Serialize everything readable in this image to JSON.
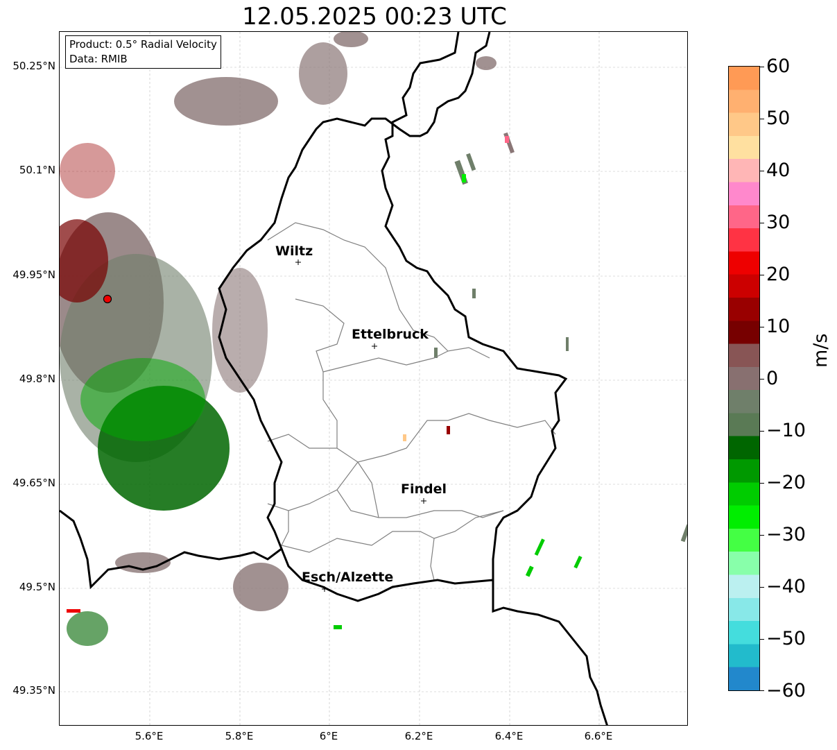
{
  "title": "12.05.2025 00:23 UTC",
  "info_box": {
    "product": "Product: 0.5° Radial Velocity",
    "data": "Data: RMIB"
  },
  "lat_ticks": [
    "50.25°N",
    "50.1°N",
    "49.95°N",
    "49.8°N",
    "49.65°N",
    "49.5°N",
    "49.35°N"
  ],
  "lon_ticks": [
    "5.6°E",
    "5.8°E",
    "6°E",
    "6.2°E",
    "6.4°E",
    "6.6°E"
  ],
  "cities": [
    {
      "name": "Wiltz"
    },
    {
      "name": "Ettelbruck"
    },
    {
      "name": "Findel"
    },
    {
      "name": "Esch/Alzette"
    }
  ],
  "colorbar": {
    "label": "m/s",
    "ticks": [
      "60",
      "50",
      "40",
      "30",
      "20",
      "10",
      "0",
      "−10",
      "−20",
      "−30",
      "−40",
      "−50",
      "−60"
    ],
    "range": [
      -60,
      60
    ],
    "colors_top_to_bottom": [
      "#ff9a55",
      "#ffb070",
      "#ffc888",
      "#ffe0a0",
      "#ffb6b6",
      "#ff88cc",
      "#ff6688",
      "#ff3344",
      "#ee0000",
      "#cc0000",
      "#990000",
      "#770000",
      "#885555",
      "#887070",
      "#6f7f6a",
      "#5a7a55",
      "#006600",
      "#009900",
      "#00cc00",
      "#00ee00",
      "#44ff44",
      "#88ffaa",
      "#bbf0f0",
      "#88e8e8",
      "#44dddd",
      "#22bbcc",
      "#2288cc"
    ]
  },
  "colors": {
    "velocity_green_dark": "#006600",
    "velocity_green": "#00cc00",
    "velocity_gray": "#8a7676",
    "velocity_red": "#990000",
    "radar_marker": "#ee0000"
  }
}
